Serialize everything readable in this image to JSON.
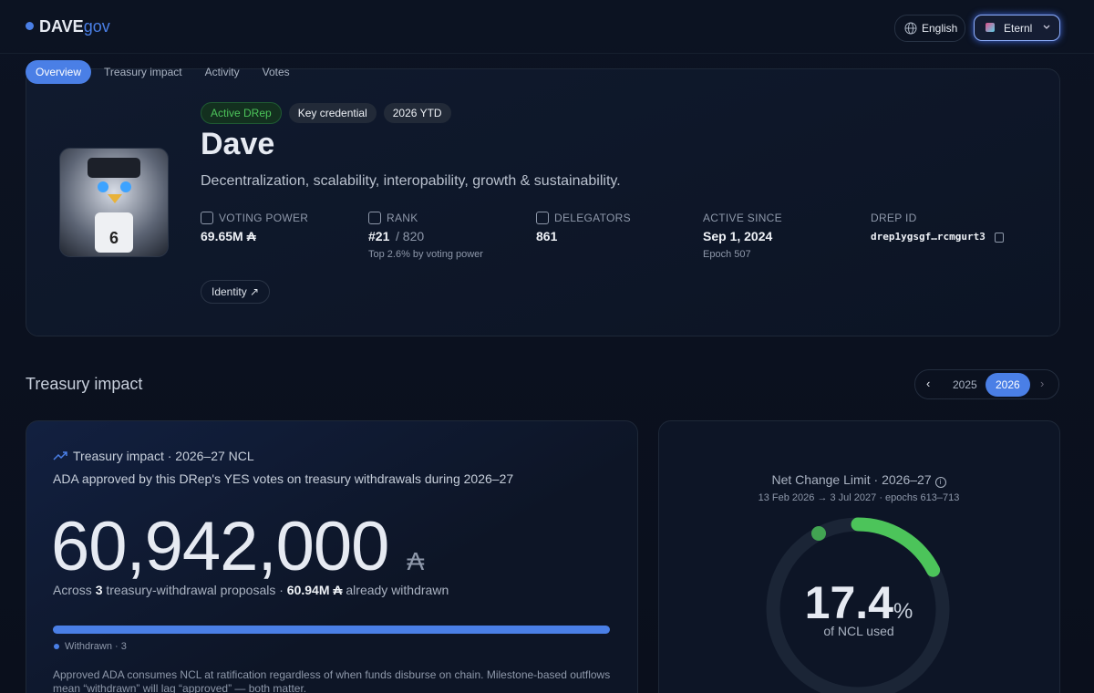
{
  "header": {
    "brand": "DAVE",
    "brand_suffix": "gov",
    "language": "English",
    "wallet": "Eternl"
  },
  "tabs": [
    "Overview",
    "Treasury impact",
    "Activity",
    "Votes"
  ],
  "profile": {
    "badges": [
      "Active DRep",
      "Key credential",
      "2026 YTD"
    ],
    "name": "Dave",
    "tagline": "Decentralization, scalability, interopability, growth & sustainability.",
    "stats": [
      {
        "label": "VOTING POWER",
        "value": "69.65M ₳"
      },
      {
        "label": "RANK",
        "value": "#21",
        "value_suffix": "/ 820",
        "note": "Top 2.6% by voting power"
      },
      {
        "label": "DELEGATORS",
        "value": "861"
      },
      {
        "label": "ACTIVE SINCE",
        "value": "Sep 1, 2024",
        "note": "Epoch 507"
      },
      {
        "label": "DREP ID",
        "value": "drep1ygsgf…rcmgurt3"
      }
    ],
    "identity_button": "Identity ↗"
  },
  "treasury": {
    "heading": "Treasury impact",
    "years": [
      "2025",
      "2026"
    ],
    "card": {
      "title": "Treasury impact · 2026–27 NCL",
      "subtitle": "ADA approved by this DRep's YES votes on treasury withdrawals during 2026–27",
      "amount": "60,942,000",
      "currency": "₳",
      "summary": [
        "Across",
        "3",
        "treasury-withdrawal proposals ·",
        "60.94M ₳",
        "already withdrawn"
      ],
      "legend": "Withdrawn · 3",
      "note": "Approved ADA consumes NCL at ratification regardless of when funds disburse on chain. Milestone-based outflows mean “withdrawn” will lag “approved” — both matter."
    },
    "ncl": {
      "title": "Net Change Limit · 2026–27",
      "period": "13 Feb 2026 → 3 Jul 2027 · epochs 613–713",
      "value": 17.4,
      "unit": "%",
      "caption": "of NCL used"
    }
  }
}
